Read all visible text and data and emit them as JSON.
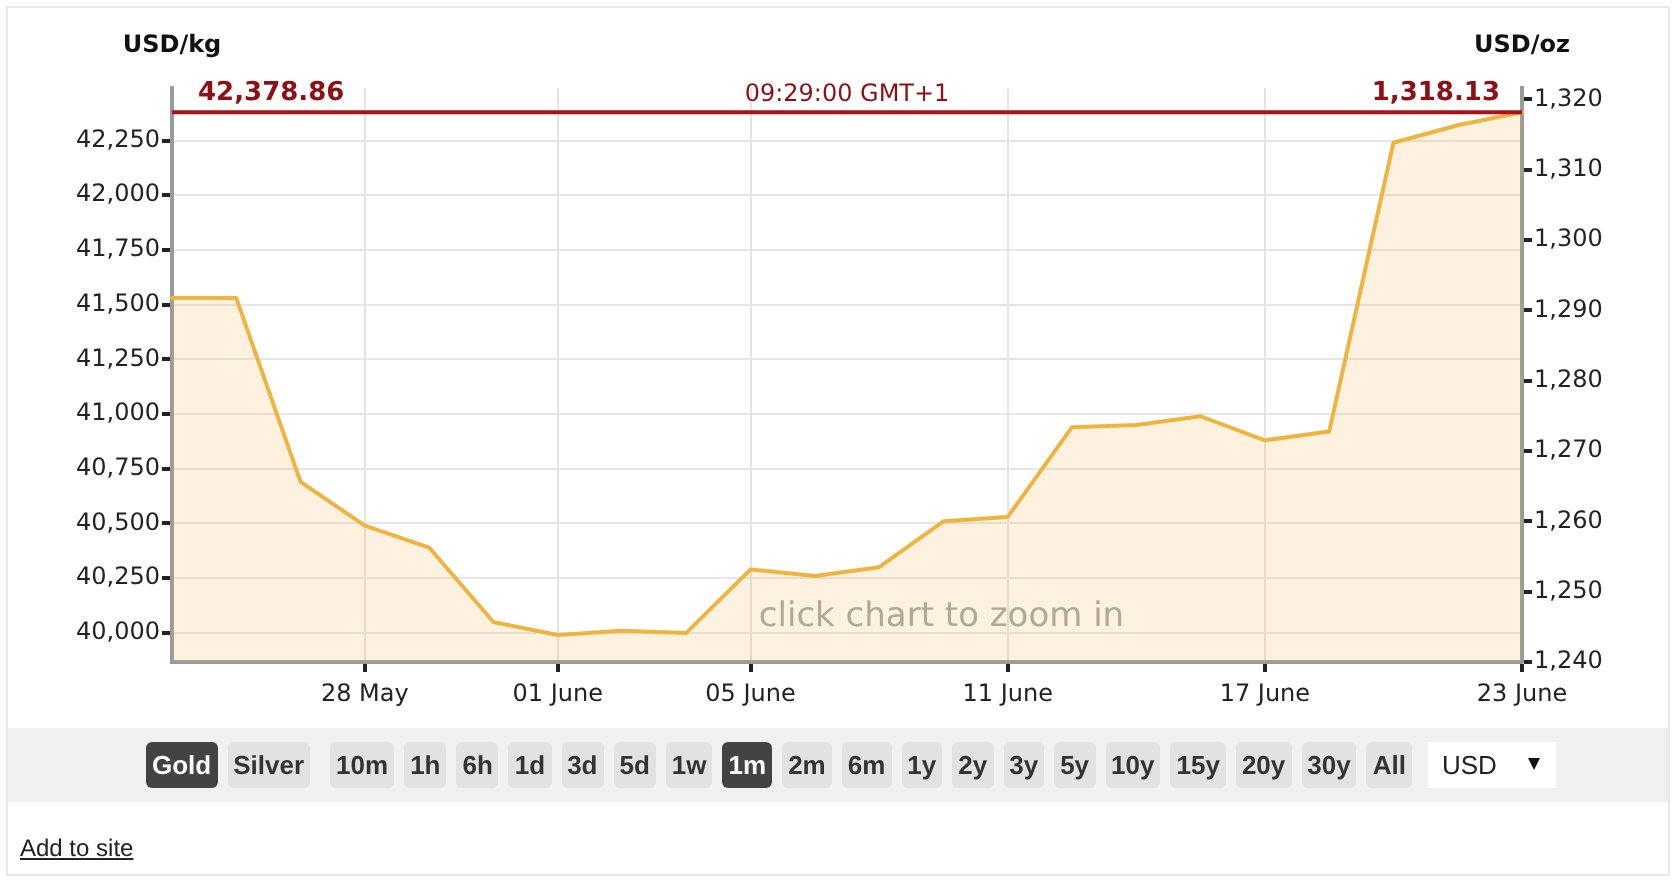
{
  "chart_data": [
    {
      "type": "area",
      "ylabel": "USD/kg",
      "y2label": "USD/oz",
      "categories": [
        null,
        null,
        null,
        "28 May",
        null,
        null,
        "01 June",
        null,
        null,
        "05 June",
        null,
        null,
        null,
        "11 June",
        null,
        null,
        null,
        "17 June",
        null,
        null,
        null,
        "23 June"
      ],
      "values": [
        41530,
        41530,
        40690,
        40490,
        40390,
        40050,
        39990,
        40010,
        40000,
        40290,
        40260,
        40300,
        40510,
        40530,
        40940,
        40950,
        40990,
        40880,
        40920,
        42240,
        42320,
        42378.86
      ],
      "color": "#efb43f",
      "marker": "none",
      "grid": true,
      "ylim": [
        39867,
        42490
      ],
      "yticks": [
        {
          "value": 40000,
          "label": "40,000"
        },
        {
          "value": 40250,
          "label": "40,250"
        },
        {
          "value": 40500,
          "label": "40,500"
        },
        {
          "value": 40750,
          "label": "40,750"
        },
        {
          "value": 41000,
          "label": "41,000"
        },
        {
          "value": 41250,
          "label": "41,250"
        },
        {
          "value": 41500,
          "label": "41,500"
        },
        {
          "value": 41750,
          "label": "41,750"
        },
        {
          "value": 42000,
          "label": "42,000"
        },
        {
          "value": 42250,
          "label": "42,250"
        }
      ],
      "y2lim": [
        1240,
        1321.6
      ],
      "y2ticks": [
        {
          "value": 1240,
          "label": "1,240"
        },
        {
          "value": 1250,
          "label": "1,250"
        },
        {
          "value": 1260,
          "label": "1,260"
        },
        {
          "value": 1270,
          "label": "1,270"
        },
        {
          "value": 1280,
          "label": "1,280"
        },
        {
          "value": 1290,
          "label": "1,290"
        },
        {
          "value": 1300,
          "label": "1,300"
        },
        {
          "value": 1310,
          "label": "1,310"
        },
        {
          "value": 1320,
          "label": "1,320"
        }
      ],
      "ref_lines": [
        {
          "axis": "y",
          "value": 42378.86,
          "label": "42,378.86",
          "color": "#a8121a"
        }
      ],
      "annotations": [
        {
          "text": "09:29:00 GMT+1",
          "y": 42378.86
        },
        {
          "text": "1,318.13",
          "x": "23 June",
          "y": 42378.86
        },
        "click chart to zoom in"
      ]
    },
    {
      "type": "other",
      "annotations": [
        "Gold",
        "Silver",
        "10m",
        "1h",
        "6h",
        "1d",
        "3d",
        "5d",
        "1w",
        "1m",
        "2m",
        "6m",
        "1y",
        "2y",
        "3y",
        "5y",
        "10y",
        "15y",
        "20y",
        "30y",
        "All",
        "USD",
        "Add to site"
      ]
    }
  ]
}
